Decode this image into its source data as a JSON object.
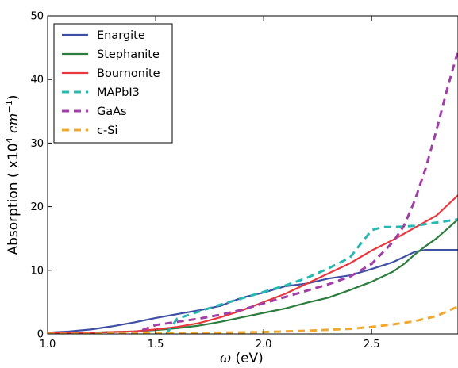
{
  "chart_data": {
    "type": "line",
    "title": "",
    "xlabel": "ω (eV)",
    "ylabel": "Absorption ( x10⁴ cm⁻¹)",
    "xlim": [
      1.0,
      2.9
    ],
    "ylim": [
      0,
      50
    ],
    "xticks": [
      1.0,
      1.5,
      2.0,
      2.5
    ],
    "yticks": [
      0,
      10,
      20,
      30,
      40,
      50
    ],
    "grid": false,
    "legend_position": "top-left",
    "series": [
      {
        "name": "Enargite",
        "color": "#3f4fa3",
        "dashed": false,
        "x": [
          1.0,
          1.1,
          1.2,
          1.3,
          1.4,
          1.5,
          1.6,
          1.7,
          1.8,
          1.9,
          2.0,
          2.1,
          2.2,
          2.3,
          2.4,
          2.5,
          2.6,
          2.7,
          2.75,
          2.8,
          2.9
        ],
        "y": [
          0.2,
          0.4,
          0.7,
          1.2,
          1.8,
          2.5,
          3.1,
          3.7,
          4.4,
          5.7,
          6.5,
          7.5,
          7.9,
          8.7,
          9.2,
          10.2,
          11.3,
          12.9,
          13.2,
          13.2,
          13.2
        ]
      },
      {
        "name": "Stephanite",
        "color": "#2c7d3e",
        "dashed": false,
        "x": [
          1.0,
          1.2,
          1.4,
          1.5,
          1.6,
          1.7,
          1.8,
          1.9,
          2.0,
          2.1,
          2.2,
          2.3,
          2.4,
          2.5,
          2.6,
          2.65,
          2.7,
          2.75,
          2.8,
          2.85,
          2.9
        ],
        "y": [
          0.1,
          0.2,
          0.4,
          0.6,
          0.9,
          1.3,
          1.9,
          2.6,
          3.3,
          4.0,
          4.9,
          5.7,
          6.9,
          8.2,
          9.8,
          11.0,
          12.5,
          13.8,
          15.0,
          16.5,
          18.0
        ]
      },
      {
        "name": "Bournonite",
        "color": "#e8383d",
        "dashed": false,
        "x": [
          1.0,
          1.2,
          1.4,
          1.5,
          1.6,
          1.7,
          1.8,
          1.9,
          2.0,
          2.1,
          2.2,
          2.3,
          2.4,
          2.5,
          2.6,
          2.7,
          2.8,
          2.85,
          2.9
        ],
        "y": [
          0.1,
          0.2,
          0.4,
          0.7,
          1.1,
          1.7,
          2.6,
          3.7,
          5.0,
          6.3,
          7.9,
          9.5,
          11.1,
          13.1,
          14.8,
          16.7,
          18.6,
          20.2,
          21.8
        ]
      },
      {
        "name": "MAPbI3",
        "color": "#27b8b0",
        "dashed": true,
        "x": [
          1.55,
          1.6,
          1.7,
          1.8,
          1.9,
          2.0,
          2.1,
          2.2,
          2.3,
          2.4,
          2.45,
          2.5,
          2.55,
          2.6,
          2.7,
          2.8,
          2.9
        ],
        "y": [
          0.0,
          2.4,
          3.5,
          4.6,
          5.6,
          6.6,
          7.6,
          8.8,
          10.3,
          12.0,
          14.2,
          16.3,
          16.8,
          16.8,
          17.0,
          17.5,
          18.0
        ]
      },
      {
        "name": "GaAs",
        "color": "#a040a6",
        "dashed": true,
        "x": [
          1.0,
          1.2,
          1.4,
          1.5,
          1.6,
          1.7,
          1.8,
          1.9,
          2.0,
          2.1,
          2.2,
          2.3,
          2.4,
          2.5,
          2.6,
          2.65,
          2.7,
          2.75,
          2.8,
          2.85,
          2.9
        ],
        "y": [
          0.0,
          0.0,
          0.1,
          1.4,
          1.9,
          2.4,
          3.0,
          3.8,
          4.8,
          5.8,
          6.8,
          7.8,
          9.0,
          11.0,
          14.5,
          17.0,
          21.0,
          26.0,
          32.0,
          38.5,
          44.5
        ]
      },
      {
        "name": "c-Si",
        "color": "#f0a830",
        "dashed": true,
        "x": [
          1.0,
          1.2,
          1.4,
          1.6,
          1.8,
          2.0,
          2.2,
          2.4,
          2.5,
          2.6,
          2.7,
          2.8,
          2.9
        ],
        "y": [
          0.0,
          0.0,
          0.05,
          0.1,
          0.2,
          0.3,
          0.5,
          0.8,
          1.1,
          1.5,
          2.0,
          2.8,
          4.3
        ]
      }
    ]
  }
}
